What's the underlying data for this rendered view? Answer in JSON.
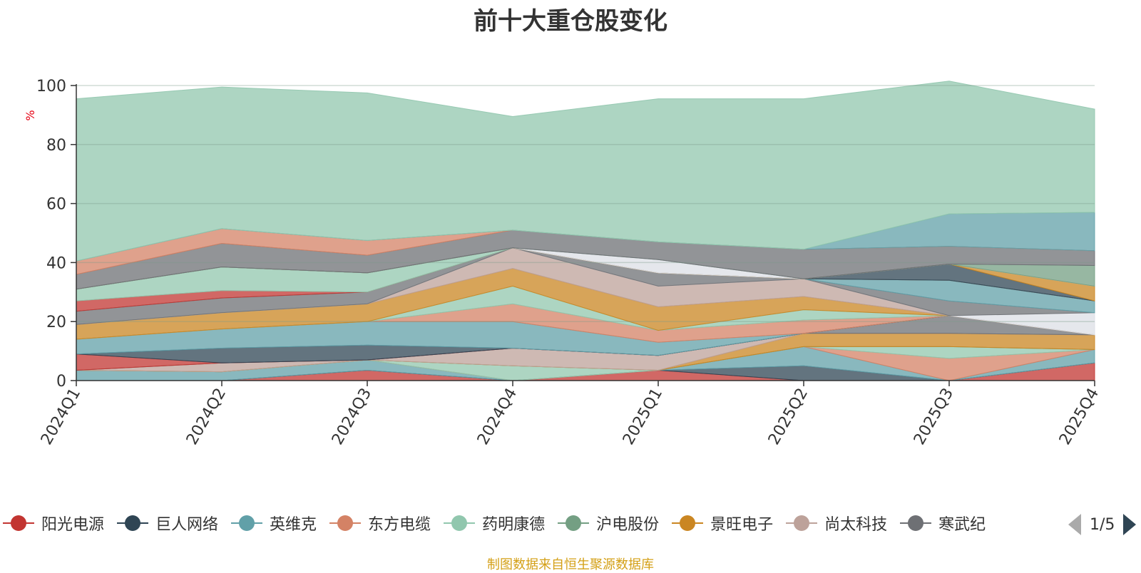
{
  "chart_data": {
    "type": "area",
    "title": "前十大重仓股变化",
    "ylabel": "%",
    "ylim": [
      0,
      100
    ],
    "yticks": [
      0,
      20,
      40,
      60,
      80,
      100
    ],
    "grid": true,
    "categories": [
      "2024Q1",
      "2024Q2",
      "2024Q3",
      "2024Q4",
      "2025Q1",
      "2025Q2",
      "2025Q3",
      "2025Q4"
    ],
    "stacked": true,
    "legend_position": "bottom",
    "series": [
      {
        "name": "阳光电源",
        "color": "#c23531",
        "values": [
          0,
          0,
          3.5,
          0,
          3.5,
          0,
          0,
          6
        ]
      },
      {
        "name": "巨人网络",
        "color": "#2f4554",
        "values": [
          0,
          0,
          0,
          0,
          0,
          5,
          0,
          0
        ]
      },
      {
        "name": "英维克",
        "color": "#61a0a8",
        "values": [
          3.5,
          3,
          3.5,
          0,
          0,
          6.5,
          0,
          4.5
        ]
      },
      {
        "name": "东方电缆",
        "color": "#d48265",
        "values": [
          0,
          0,
          0,
          0,
          0,
          0,
          7.5,
          0
        ]
      },
      {
        "name": "药明康德",
        "color": "#91c7ae",
        "values": [
          0,
          0,
          0,
          5,
          0,
          0,
          4,
          0
        ]
      },
      {
        "name": "沪电股份",
        "color": "#749f83",
        "values": [
          0,
          0,
          0,
          0,
          0,
          0,
          0,
          0
        ]
      },
      {
        "name": "景旺电子",
        "color": "#ca8622",
        "values": [
          0,
          0,
          0,
          0,
          0,
          4.5,
          4.5,
          5
        ]
      },
      {
        "name": "尚太科技",
        "color": "#bda29a",
        "values": [
          0,
          3,
          0,
          6,
          5,
          0,
          0,
          0
        ]
      },
      {
        "name": "寒武纪",
        "color": "#6e7074",
        "values": [
          0,
          0,
          0,
          0,
          0,
          0,
          6,
          0
        ]
      },
      {
        "name": "",
        "color": "#c23531",
        "values": [
          5.5,
          0,
          0,
          0,
          0,
          0,
          0,
          0
        ]
      },
      {
        "name": "",
        "color": "#2f4554",
        "values": [
          0,
          5,
          5,
          0,
          0,
          0,
          0,
          0
        ]
      },
      {
        "name": "",
        "color": "#61a0a8",
        "values": [
          5,
          6.5,
          8,
          9,
          4.5,
          0,
          0,
          0
        ]
      },
      {
        "name": "",
        "color": "#d48265",
        "values": [
          0,
          0,
          0,
          6,
          4,
          4.5,
          0,
          0
        ]
      },
      {
        "name": "",
        "color": "#91c7ae",
        "values": [
          0,
          0,
          0,
          6,
          0,
          3.5,
          0,
          0
        ]
      },
      {
        "name": "",
        "color": "#ca8622",
        "values": [
          5,
          5.5,
          6,
          6,
          8,
          4.5,
          0,
          0
        ]
      },
      {
        "name": "",
        "color": "#bda29a",
        "values": [
          0,
          0,
          0,
          7,
          7,
          6,
          0,
          0
        ]
      },
      {
        "name": "",
        "color": "#dcdfe6",
        "values": [
          0,
          0,
          0,
          0,
          0,
          0,
          0,
          7.5
        ]
      },
      {
        "name": "",
        "color": "#6e7074",
        "values": [
          4.5,
          5,
          4,
          0,
          4.5,
          0,
          5,
          0
        ]
      },
      {
        "name": "",
        "color": "#61a0a8",
        "values": [
          0,
          0,
          0,
          0,
          0,
          0,
          7,
          4
        ]
      },
      {
        "name": "",
        "color": "#c23531",
        "values": [
          3.5,
          2.5,
          0,
          0,
          0,
          0,
          0,
          0
        ]
      },
      {
        "name": "",
        "color": "#91c7ae",
        "values": [
          4,
          8,
          6.5,
          0,
          0,
          0,
          0,
          0
        ]
      },
      {
        "name": "",
        "color": "#2f4554",
        "values": [
          0,
          0,
          0,
          0,
          0,
          0,
          5.5,
          0
        ]
      },
      {
        "name": "",
        "color": "#ca8622",
        "values": [
          0,
          0,
          0,
          0,
          0,
          0,
          0,
          5
        ]
      },
      {
        "name": "",
        "color": "#dcdfe6",
        "values": [
          0,
          0,
          0,
          0,
          4.5,
          0,
          0,
          0
        ]
      },
      {
        "name": "",
        "color": "#749f83",
        "values": [
          0,
          0,
          0,
          0,
          0,
          0,
          0,
          7
        ]
      },
      {
        "name": "",
        "color": "#6e7074",
        "values": [
          5,
          8,
          6,
          6,
          6,
          10,
          6,
          5
        ]
      },
      {
        "name": "",
        "color": "#d48265",
        "values": [
          4.5,
          5,
          5,
          0,
          0,
          0,
          0,
          0
        ]
      },
      {
        "name": "",
        "color": "#61a0a8",
        "values": [
          0,
          0,
          0,
          0,
          0,
          0,
          11,
          13
        ]
      },
      {
        "name": "",
        "color": "#91c7ae",
        "values": [
          55,
          48,
          50,
          38.5,
          48.5,
          51,
          45,
          35
        ]
      }
    ]
  },
  "legend": {
    "items": [
      {
        "label": "阳光电源",
        "color": "#c23531"
      },
      {
        "label": "巨人网络",
        "color": "#2f4554"
      },
      {
        "label": "英维克",
        "color": "#61a0a8"
      },
      {
        "label": "东方电缆",
        "color": "#d48265"
      },
      {
        "label": "药明康德",
        "color": "#91c7ae"
      },
      {
        "label": "沪电股份",
        "color": "#749f83"
      },
      {
        "label": "景旺电子",
        "color": "#ca8622"
      },
      {
        "label": "尚太科技",
        "color": "#bda29a"
      },
      {
        "label": "寒武纪",
        "color": "#6e7074"
      }
    ],
    "page_indicator": "1/5"
  },
  "footer": {
    "source": "制图数据来自恒生聚源数据库"
  }
}
